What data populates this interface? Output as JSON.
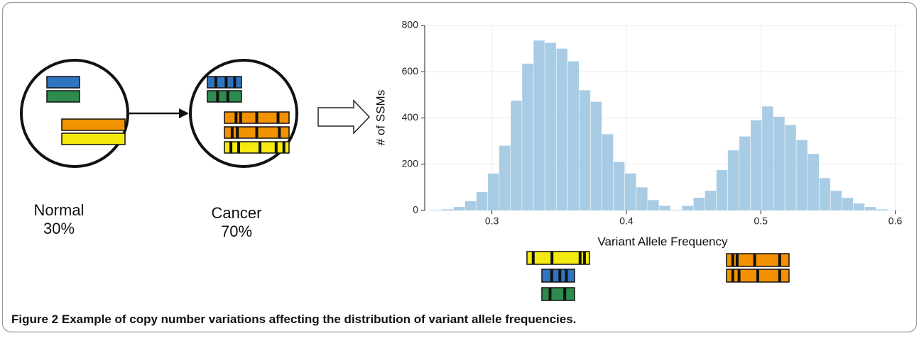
{
  "diagram": {
    "normal": {
      "label": "Normal",
      "fraction": "30%"
    },
    "cancer": {
      "label": "Cancer",
      "fraction": "70%"
    }
  },
  "chart_data": {
    "type": "histogram",
    "xlabel": "Variant Allele Frequency",
    "ylabel": "# of SSMs",
    "bins": [
      0.2545,
      0.263,
      0.2715,
      0.28,
      0.2885,
      0.297,
      0.3055,
      0.314,
      0.3225,
      0.331,
      0.3395,
      0.348,
      0.3565,
      0.365,
      0.3735,
      0.382,
      0.3905,
      0.399,
      0.4075,
      0.416,
      0.4245,
      0.433,
      0.4415,
      0.45,
      0.4585,
      0.467,
      0.4755,
      0.484,
      0.4925,
      0.501,
      0.5095,
      0.518,
      0.5265,
      0.535,
      0.5435,
      0.552,
      0.5605,
      0.569,
      0.5775,
      0.586,
      0.5945
    ],
    "values": [
      2,
      5,
      15,
      40,
      80,
      160,
      280,
      475,
      635,
      735,
      725,
      700,
      645,
      520,
      470,
      330,
      210,
      160,
      100,
      45,
      20,
      2,
      20,
      55,
      85,
      175,
      260,
      320,
      390,
      450,
      405,
      370,
      305,
      245,
      140,
      85,
      55,
      30,
      15,
      5
    ],
    "color": "#a8cce4",
    "xlim": [
      0.25,
      0.605
    ],
    "ylim": [
      0,
      800
    ],
    "xticks": [
      0.3,
      0.4,
      0.5,
      0.6
    ],
    "yticks": [
      0,
      200,
      400,
      600,
      800
    ],
    "grid": true
  },
  "caption": {
    "label": "Figure 2",
    "text": "Example of copy number variations affecting the distribution of variant allele frequencies."
  }
}
